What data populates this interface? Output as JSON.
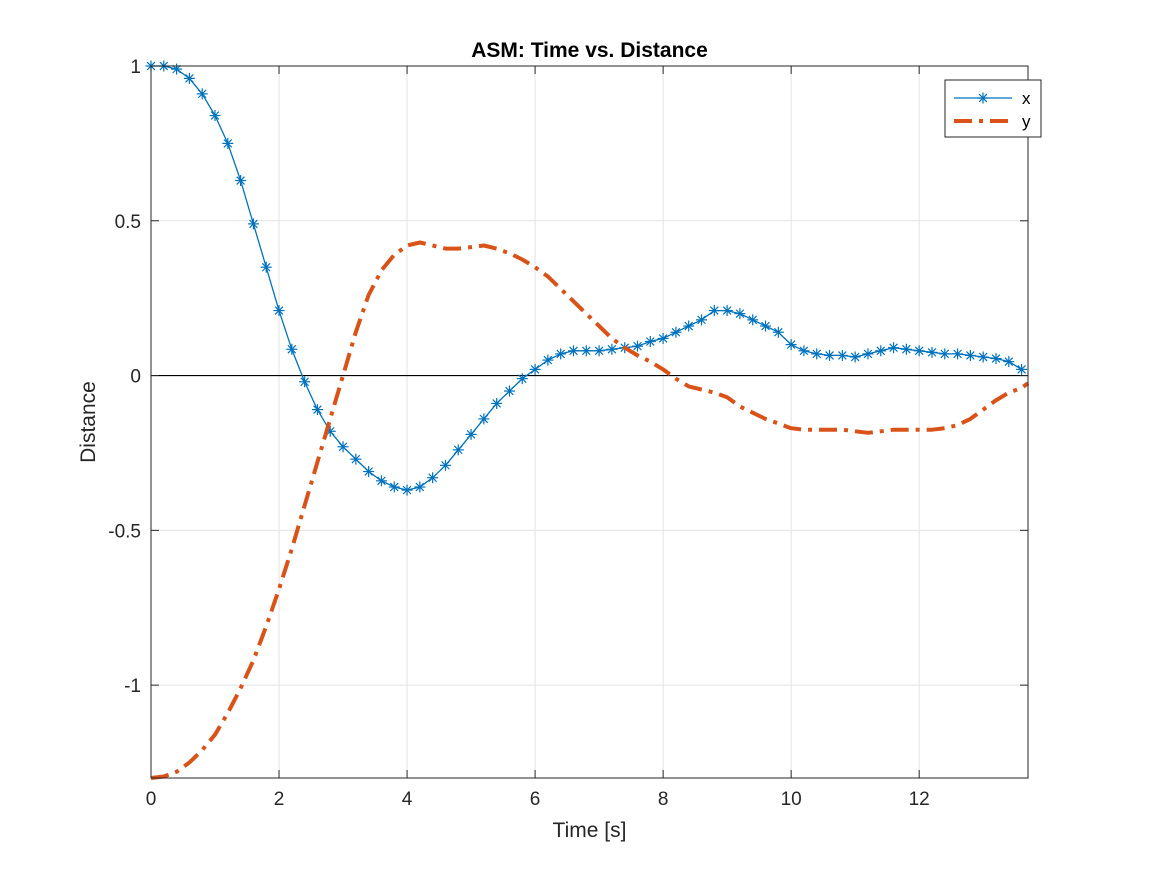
{
  "chart_data": {
    "type": "line",
    "title": "ASM: Time vs. Distance",
    "xlabel": "Time [s]",
    "ylabel": "Distance",
    "xlim": [
      0,
      13.7
    ],
    "ylim": [
      -1.3,
      1
    ],
    "xticks": [
      0,
      2,
      4,
      6,
      8,
      10,
      12
    ],
    "xtick_labels": [
      "0",
      "2",
      "4",
      "6",
      "8",
      "10",
      "12"
    ],
    "yticks": [
      -1,
      -0.5,
      0,
      0.5,
      1
    ],
    "ytick_labels": [
      "-1",
      "-0.5",
      "0",
      "0.5",
      "1"
    ],
    "grid": true,
    "zero_line": true,
    "legend_position": "top-right",
    "series": [
      {
        "name": "x",
        "color": "#0072BD",
        "line_style": "solid",
        "marker": "asterisk",
        "x": [
          0,
          0.2,
          0.4,
          0.6,
          0.8,
          1.0,
          1.2,
          1.4,
          1.6,
          1.8,
          2.0,
          2.2,
          2.4,
          2.6,
          2.8,
          3.0,
          3.2,
          3.4,
          3.6,
          3.8,
          4.0,
          4.2,
          4.4,
          4.6,
          4.8,
          5.0,
          5.2,
          5.4,
          5.6,
          5.8,
          6.0,
          6.2,
          6.4,
          6.6,
          6.8,
          7.0,
          7.2,
          7.4,
          7.6,
          7.8,
          8.0,
          8.2,
          8.4,
          8.6,
          8.8,
          9.0,
          9.2,
          9.4,
          9.6,
          9.8,
          10.0,
          10.2,
          10.4,
          10.6,
          10.8,
          11.0,
          11.2,
          11.4,
          11.6,
          11.8,
          12.0,
          12.2,
          12.4,
          12.6,
          12.8,
          13.0,
          13.2,
          13.4,
          13.6
        ],
        "y": [
          1.0,
          1.0,
          0.99,
          0.96,
          0.91,
          0.84,
          0.75,
          0.63,
          0.49,
          0.35,
          0.21,
          0.085,
          -0.02,
          -0.11,
          -0.18,
          -0.23,
          -0.27,
          -0.31,
          -0.34,
          -0.36,
          -0.37,
          -0.36,
          -0.33,
          -0.29,
          -0.24,
          -0.19,
          -0.14,
          -0.09,
          -0.05,
          -0.01,
          0.02,
          0.05,
          0.07,
          0.08,
          0.08,
          0.08,
          0.085,
          0.09,
          0.095,
          0.11,
          0.12,
          0.14,
          0.16,
          0.18,
          0.21,
          0.21,
          0.2,
          0.18,
          0.16,
          0.14,
          0.1,
          0.08,
          0.07,
          0.065,
          0.065,
          0.06,
          0.07,
          0.08,
          0.09,
          0.085,
          0.08,
          0.075,
          0.07,
          0.07,
          0.065,
          0.06,
          0.055,
          0.045,
          0.02
        ]
      },
      {
        "name": "y",
        "color": "#D95319",
        "line_style": "dashdot",
        "marker": "none",
        "x": [
          0,
          0.2,
          0.4,
          0.6,
          0.8,
          1.0,
          1.2,
          1.4,
          1.6,
          1.8,
          2.0,
          2.2,
          2.4,
          2.6,
          2.8,
          3.0,
          3.2,
          3.4,
          3.6,
          3.8,
          4.0,
          4.2,
          4.4,
          4.6,
          4.8,
          5.0,
          5.2,
          5.4,
          5.6,
          5.8,
          6.0,
          6.2,
          6.4,
          6.6,
          6.8,
          7.0,
          7.2,
          7.4,
          7.6,
          7.8,
          8.0,
          8.2,
          8.4,
          8.6,
          8.8,
          9.0,
          9.2,
          9.4,
          9.6,
          9.8,
          10.0,
          10.2,
          10.4,
          10.6,
          10.8,
          11.0,
          11.2,
          11.4,
          11.6,
          11.8,
          12.0,
          12.2,
          12.4,
          12.6,
          12.8,
          13.0,
          13.2,
          13.4,
          13.6,
          13.7
        ],
        "y": [
          -1.3,
          -1.295,
          -1.28,
          -1.25,
          -1.21,
          -1.16,
          -1.09,
          -1.01,
          -0.92,
          -0.81,
          -0.69,
          -0.56,
          -0.42,
          -0.28,
          -0.14,
          0.0,
          0.14,
          0.26,
          0.34,
          0.39,
          0.42,
          0.43,
          0.42,
          0.41,
          0.41,
          0.415,
          0.42,
          0.41,
          0.395,
          0.375,
          0.35,
          0.32,
          0.28,
          0.24,
          0.2,
          0.16,
          0.12,
          0.09,
          0.065,
          0.045,
          0.02,
          -0.01,
          -0.035,
          -0.045,
          -0.055,
          -0.07,
          -0.1,
          -0.12,
          -0.14,
          -0.155,
          -0.17,
          -0.175,
          -0.175,
          -0.175,
          -0.175,
          -0.18,
          -0.185,
          -0.18,
          -0.175,
          -0.175,
          -0.175,
          -0.175,
          -0.17,
          -0.16,
          -0.14,
          -0.11,
          -0.08,
          -0.055,
          -0.04,
          -0.025
        ]
      }
    ]
  }
}
